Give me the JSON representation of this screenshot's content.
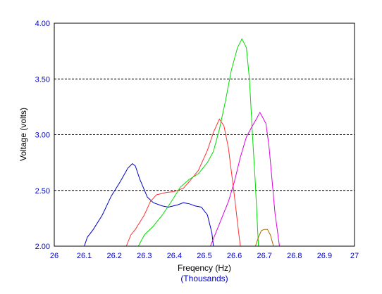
{
  "chart_data": {
    "type": "line",
    "xlabel": "Freqency (Hz)",
    "xlabel_units": "(Thousands)",
    "ylabel": "Voltage (volts)",
    "xlim": [
      26,
      27
    ],
    "ylim": [
      2.0,
      4.0
    ],
    "x_ticks": [
      "26",
      "26.1",
      "26.2",
      "26.3",
      "26.4",
      "26.5",
      "26.6",
      "26.7",
      "26.8",
      "26.9",
      "27"
    ],
    "y_ticks": [
      "2.00",
      "2.50",
      "3.00",
      "3.50",
      "4.00"
    ],
    "gridlines_y": [
      2.5,
      3.0,
      3.5
    ],
    "grid": "horizontal dashed",
    "series": [
      {
        "color": "#0000cc",
        "points": [
          [
            26.1,
            2.0
          ],
          [
            26.11,
            2.08
          ],
          [
            26.13,
            2.15
          ],
          [
            26.16,
            2.28
          ],
          [
            26.19,
            2.45
          ],
          [
            26.22,
            2.58
          ],
          [
            26.245,
            2.7
          ],
          [
            26.26,
            2.74
          ],
          [
            26.27,
            2.72
          ],
          [
            26.285,
            2.6
          ],
          [
            26.31,
            2.44
          ],
          [
            26.33,
            2.39
          ],
          [
            26.36,
            2.36
          ],
          [
            26.38,
            2.35
          ],
          [
            26.41,
            2.37
          ],
          [
            26.43,
            2.39
          ],
          [
            26.45,
            2.38
          ],
          [
            26.47,
            2.36
          ],
          [
            26.49,
            2.35
          ],
          [
            26.51,
            2.28
          ],
          [
            26.525,
            2.12
          ],
          [
            26.53,
            2.0
          ]
        ]
      },
      {
        "color": "#ff3333",
        "points": [
          [
            26.24,
            2.0
          ],
          [
            26.255,
            2.1
          ],
          [
            26.27,
            2.15
          ],
          [
            26.3,
            2.28
          ],
          [
            26.32,
            2.4
          ],
          [
            26.34,
            2.46
          ],
          [
            26.37,
            2.48
          ],
          [
            26.4,
            2.49
          ],
          [
            26.43,
            2.52
          ],
          [
            26.45,
            2.58
          ],
          [
            26.48,
            2.68
          ],
          [
            26.51,
            2.86
          ],
          [
            26.53,
            3.02
          ],
          [
            26.55,
            3.14
          ],
          [
            26.565,
            3.08
          ],
          [
            26.58,
            2.88
          ],
          [
            26.6,
            2.45
          ],
          [
            26.615,
            2.1
          ],
          [
            26.62,
            2.0
          ]
        ]
      },
      {
        "color": "#00dd00",
        "points": [
          [
            26.28,
            2.0
          ],
          [
            26.3,
            2.1
          ],
          [
            26.33,
            2.18
          ],
          [
            26.36,
            2.28
          ],
          [
            26.39,
            2.4
          ],
          [
            26.42,
            2.53
          ],
          [
            26.45,
            2.6
          ],
          [
            26.48,
            2.65
          ],
          [
            26.51,
            2.75
          ],
          [
            26.53,
            2.85
          ],
          [
            26.55,
            3.05
          ],
          [
            26.57,
            3.3
          ],
          [
            26.59,
            3.58
          ],
          [
            26.61,
            3.78
          ],
          [
            26.625,
            3.86
          ],
          [
            26.64,
            3.78
          ],
          [
            26.65,
            3.5
          ],
          [
            26.66,
            3.0
          ],
          [
            26.67,
            2.55
          ],
          [
            26.68,
            2.0
          ]
        ]
      },
      {
        "color": "#dd00dd",
        "points": [
          [
            26.52,
            2.0
          ],
          [
            26.55,
            2.2
          ],
          [
            26.58,
            2.4
          ],
          [
            26.6,
            2.58
          ],
          [
            26.62,
            2.8
          ],
          [
            26.64,
            2.98
          ],
          [
            26.66,
            3.08
          ],
          [
            26.675,
            3.15
          ],
          [
            26.685,
            3.2
          ],
          [
            26.695,
            3.15
          ],
          [
            26.705,
            3.1
          ],
          [
            26.715,
            2.9
          ],
          [
            26.725,
            2.6
          ],
          [
            26.735,
            2.3
          ],
          [
            26.745,
            2.1
          ],
          [
            26.75,
            2.0
          ]
        ]
      },
      {
        "color": "#aa6600",
        "points": [
          [
            26.67,
            2.0
          ],
          [
            26.68,
            2.08
          ],
          [
            26.69,
            2.14
          ],
          [
            26.7,
            2.15
          ],
          [
            26.71,
            2.15
          ],
          [
            26.72,
            2.1
          ],
          [
            26.73,
            2.0
          ]
        ]
      }
    ]
  }
}
